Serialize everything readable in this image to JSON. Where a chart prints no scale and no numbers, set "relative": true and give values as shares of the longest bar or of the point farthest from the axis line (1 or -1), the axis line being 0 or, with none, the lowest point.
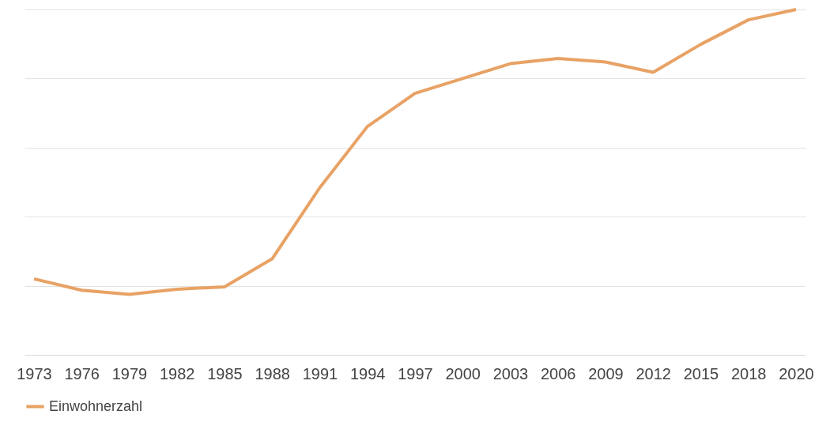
{
  "chart_data": {
    "type": "line",
    "relative": true,
    "grid": "y",
    "legend": "bottom",
    "categories": [
      "1973",
      "1976",
      "1979",
      "1982",
      "1985",
      "1988",
      "1991",
      "1994",
      "1997",
      "2000",
      "2003",
      "2006",
      "2009",
      "2012",
      "2015",
      "2018",
      "2020"
    ],
    "series": [
      {
        "name": "Einwohnerzahl",
        "color": "#e8a265",
        "values": [
          0.22,
          0.187,
          0.175,
          0.19,
          0.197,
          0.278,
          0.484,
          0.661,
          0.757,
          0.8,
          0.843,
          0.858,
          0.848,
          0.818,
          0.899,
          0.97,
          1
        ]
      }
    ]
  }
}
